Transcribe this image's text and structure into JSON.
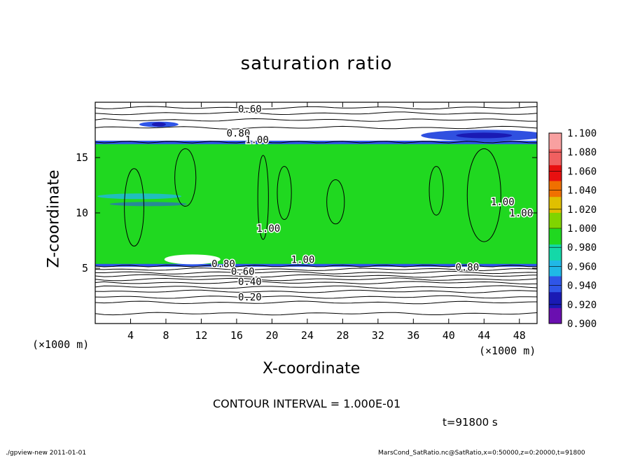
{
  "figure": {
    "title": "saturation ratio",
    "contour_interval": "CONTOUR INTERVAL = 1.000E-01",
    "time_label": "t=91800 s",
    "footer_left": "./gpview-new   2011-01-01",
    "footer_right": "MarsCond_SatRatio.nc@SatRatio,x=0:50000,z=0:20000,t=91800"
  },
  "chart_data": {
    "type": "heatmap",
    "title": "saturation ratio",
    "xlabel": "X-coordinate",
    "ylabel": "Z-coordinate",
    "x_unit": "(×1000 m)",
    "z_unit": "(×1000 m)",
    "xlim": [
      0,
      50
    ],
    "ylim": [
      0,
      20
    ],
    "x_ticks": [
      4,
      8,
      12,
      16,
      20,
      24,
      28,
      32,
      36,
      40,
      44,
      48
    ],
    "y_ticks": [
      5,
      10,
      15
    ],
    "colorbar": {
      "levels": [
        0.9,
        0.92,
        0.94,
        0.96,
        0.98,
        1.0,
        1.02,
        1.04,
        1.06,
        1.08,
        1.1
      ],
      "labels": [
        "0.900",
        "0.920",
        "0.940",
        "0.960",
        "0.980",
        "1.000",
        "1.020",
        "1.040",
        "1.060",
        "1.080",
        "1.100"
      ],
      "colors": [
        "#6a0fb0",
        "#1a1ab4",
        "#2f55e8",
        "#20b8e6",
        "#14d8a8",
        "#20d820",
        "#80d400",
        "#e0c000",
        "#f07000",
        "#e81010",
        "#f06060",
        "#f8a0a0"
      ]
    },
    "contour_labels": [
      {
        "text": "0.60",
        "x": 17.5,
        "z": 19.4
      },
      {
        "text": "0.80",
        "x": 16.2,
        "z": 17.2
      },
      {
        "text": "1.00",
        "x": 18.3,
        "z": 16.6
      },
      {
        "text": "1.00",
        "x": 19.6,
        "z": 8.6
      },
      {
        "text": "1.00",
        "x": 23.5,
        "z": 5.8
      },
      {
        "text": "1.00",
        "x": 46.1,
        "z": 11.0
      },
      {
        "text": "1.00",
        "x": 48.2,
        "z": 10.0
      },
      {
        "text": "0.80",
        "x": 14.5,
        "z": 5.4
      },
      {
        "text": "0.60",
        "x": 16.7,
        "z": 4.7
      },
      {
        "text": "0.80",
        "x": 42.1,
        "z": 5.1
      },
      {
        "text": "0.40",
        "x": 17.5,
        "z": 3.8
      },
      {
        "text": "0.20",
        "x": 17.5,
        "z": 2.4
      }
    ],
    "regions": {
      "saturated_band_z": [
        5.2,
        16.4
      ],
      "unsaturated_low_z": [
        0,
        5.2
      ],
      "unsaturated_high_z": [
        16.4,
        20
      ]
    },
    "background_contours_z": [
      0.9,
      1.9,
      2.4,
      2.9,
      3.3,
      3.7,
      4.0,
      4.3,
      4.6,
      4.9,
      17.7,
      18.4,
      19.0,
      19.5
    ]
  }
}
